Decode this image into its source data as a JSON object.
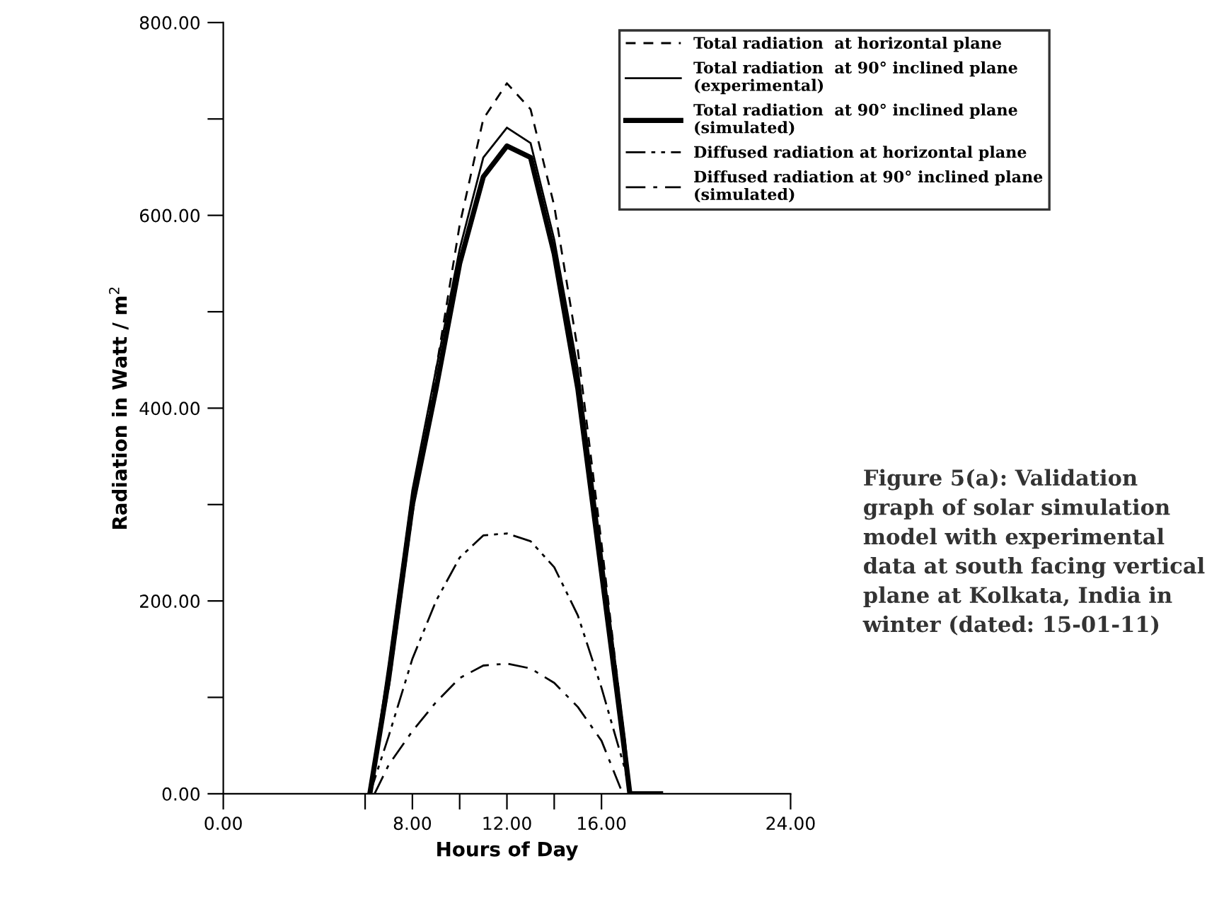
{
  "chart_data": {
    "type": "line",
    "xlabel": "Hours of Day",
    "ylabel": "Radiation in Watt / m$^{2}$",
    "x": [
      6.2,
      7,
      8,
      9,
      10,
      11,
      12,
      13,
      14,
      15,
      16,
      17,
      17.2
    ],
    "series": [
      {
        "name": "Total radiation  at horizontal plane",
        "color": "#000000",
        "line_style": "dashed",
        "values": [
          0,
          110,
          290,
          440,
          590,
          700,
          737,
          710,
          610,
          460,
          260,
          50,
          0
        ]
      },
      {
        "name": "Total radiation  at 90° inclined plane\n(experimental)",
        "color": "#000000",
        "line_style": "solid",
        "values": [
          0,
          135,
          315,
          440,
          565,
          660,
          691,
          675,
          575,
          440,
          250,
          55,
          0
        ]
      },
      {
        "name": "Total radiation  at 90° inclined plane\n(simulated)",
        "color": "#000000",
        "line_style": "solid",
        "x": [
          6.2,
          7,
          8,
          9,
          10,
          11,
          12,
          13,
          14,
          15,
          16,
          17,
          17.2,
          18.5
        ],
        "values": [
          0,
          120,
          300,
          420,
          550,
          640,
          672,
          660,
          560,
          420,
          230,
          40,
          0,
          0
        ]
      },
      {
        "name": "Diffused radiation at horizontal plane",
        "color": "#000000",
        "line_style": "dashdot",
        "values": [
          0,
          60,
          140,
          200,
          245,
          268,
          270,
          262,
          235,
          185,
          110,
          25,
          0
        ]
      },
      {
        "name": "Diffused radiation at 90° inclined plane\n(simulated)",
        "color": "#000000",
        "line_style": "dashdot",
        "x": [
          6.4,
          7,
          8,
          9,
          10,
          11,
          12,
          13,
          14,
          15,
          16,
          16.9
        ],
        "values": [
          0,
          30,
          65,
          95,
          120,
          133,
          135,
          130,
          115,
          90,
          55,
          0
        ]
      }
    ],
    "xlim": [
      0,
      24
    ],
    "xticks": [
      {
        "value": 0,
        "label": "0.00"
      },
      {
        "value": 6,
        "label": null
      },
      {
        "value": 8,
        "label": "8.00"
      },
      {
        "value": 10,
        "label": null
      },
      {
        "value": 12,
        "label": "12.00"
      },
      {
        "value": 14,
        "label": null
      },
      {
        "value": 16,
        "label": "16.00"
      },
      {
        "value": 24,
        "label": "24.00"
      }
    ],
    "ylim": [
      0,
      800
    ],
    "yticks": [
      {
        "value": 0,
        "label": "0.00"
      },
      {
        "value": 100,
        "label": null
      },
      {
        "value": 200,
        "label": "200.00"
      },
      {
        "value": 300,
        "label": null
      },
      {
        "value": 400,
        "label": "400.00"
      },
      {
        "value": 500,
        "label": null
      },
      {
        "value": 600,
        "label": "600.00"
      },
      {
        "value": 700,
        "label": null
      },
      {
        "value": 800,
        "label": "800.00"
      }
    ],
    "grid": false,
    "legend": "top right",
    "annotations": [
      "Figure 5(a): Validation graph of solar simulation model with experimental data at south facing vertical plane at Kolkata, India in winter (dated: 15-01-11)"
    ]
  }
}
